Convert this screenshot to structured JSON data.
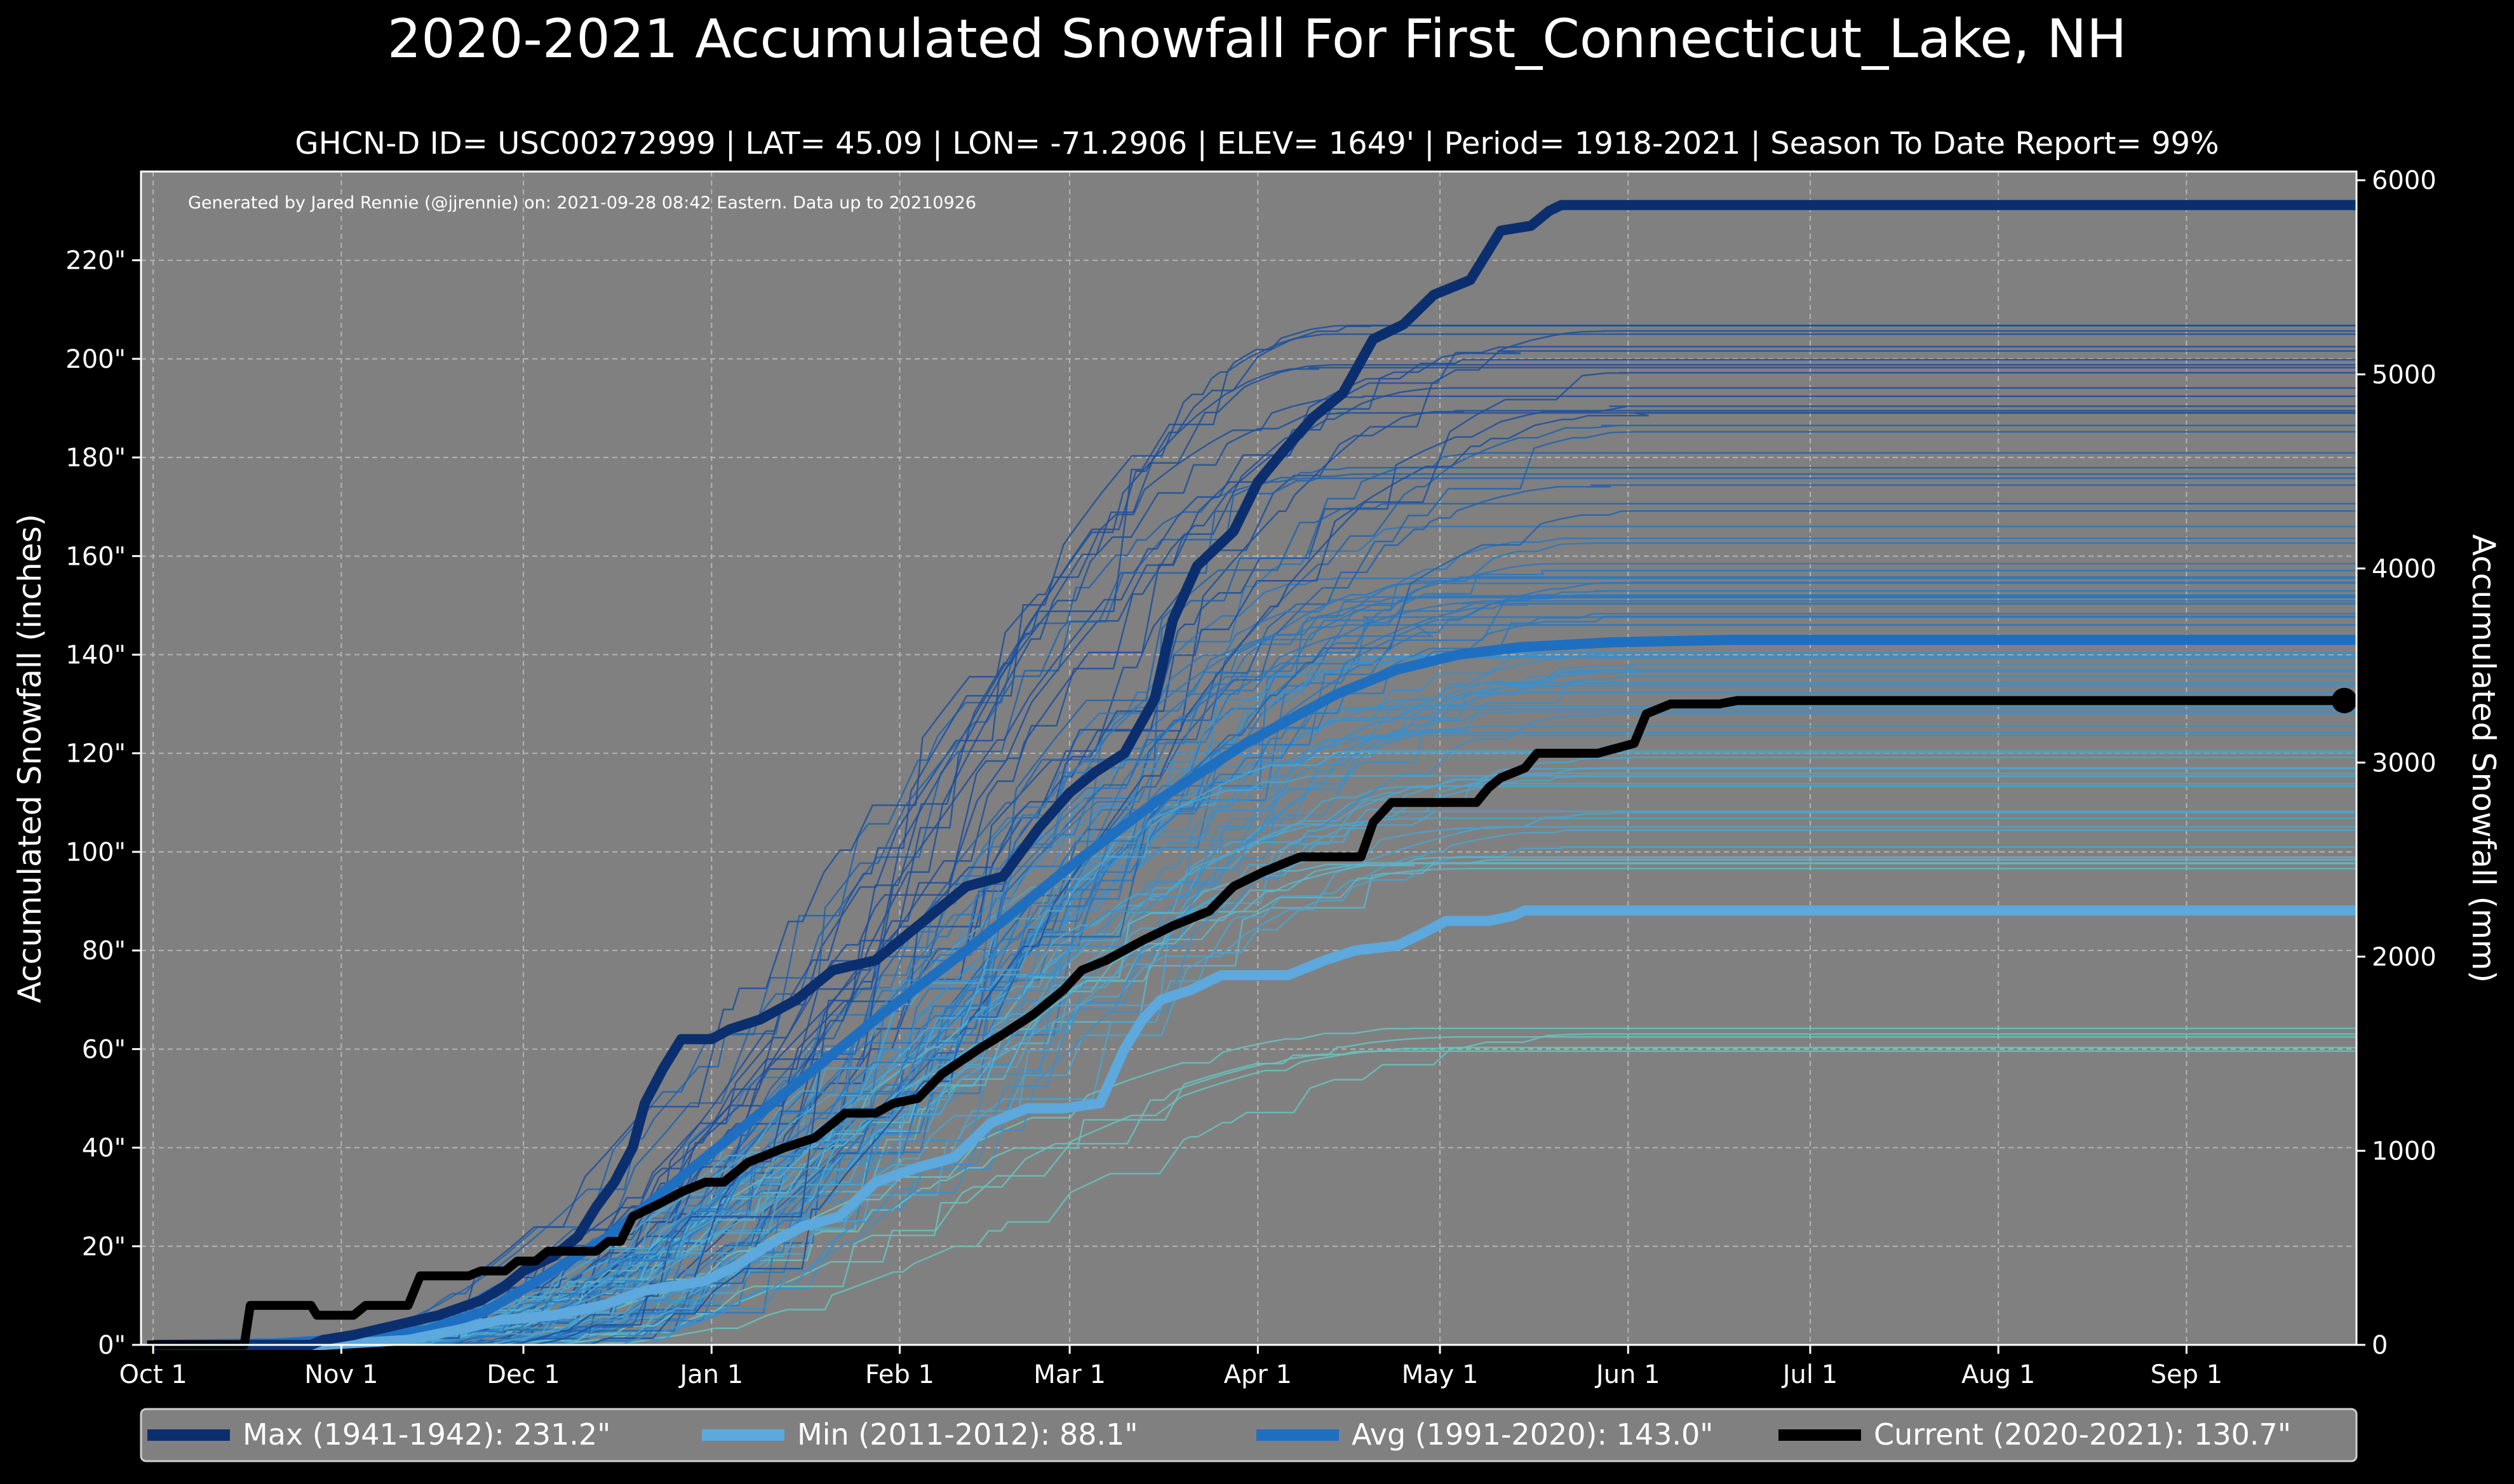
{
  "chart_data": {
    "type": "line",
    "title": "2020-2021 Accumulated Snowfall For First_Connecticut_Lake, NH",
    "subtitle": "GHCN-D ID= USC00272999 | LAT= 45.09 | LON= -71.2906 | ELEV= 1649' | Period= 1918-2021 | Season To Date Report= 99%",
    "credit": "Generated by Jared Rennie (@jjrennie) on: 2021-09-28 08:42 Eastern. Data up to 20210926",
    "ylabel_left": "Accumulated Snowfall (inches)",
    "ylabel_right": "Accumulated Snowfall (mm)",
    "x_ticks": [
      "Oct 1",
      "Nov 1",
      "Dec 1",
      "Jan 1",
      "Feb 1",
      "Mar 1",
      "Apr 1",
      "May 1",
      "Jun 1",
      "Jul 1",
      "Aug 1",
      "Sep 1"
    ],
    "y_ticks_left": [
      "0\"",
      "20\"",
      "40\"",
      "60\"",
      "80\"",
      "100\"",
      "120\"",
      "140\"",
      "160\"",
      "180\"",
      "200\"",
      "220\""
    ],
    "y_ticks_right": [
      "0",
      "1000",
      "2000",
      "3000",
      "4000",
      "5000",
      "6000"
    ],
    "ylim_inches": [
      0,
      238
    ],
    "ylim_mm": [
      0,
      6045
    ],
    "xlim_days_from_oct1": [
      -2,
      363
    ],
    "grid": true,
    "legend_position": "bottom",
    "series": [
      {
        "name": "Max (1941-1942):  231.2\"",
        "color": "#0b2f6e",
        "points": [
          [
            0,
            0
          ],
          [
            26,
            0
          ],
          [
            28,
            1
          ],
          [
            33,
            2
          ],
          [
            40,
            4
          ],
          [
            47,
            6
          ],
          [
            54,
            9
          ],
          [
            58,
            12
          ],
          [
            61,
            15
          ],
          [
            66,
            18
          ],
          [
            70,
            22
          ],
          [
            73,
            28
          ],
          [
            76,
            33
          ],
          [
            79,
            40
          ],
          [
            81,
            49
          ],
          [
            84,
            56
          ],
          [
            87,
            62
          ],
          [
            92,
            62
          ],
          [
            95,
            64
          ],
          [
            100,
            66
          ],
          [
            106,
            70
          ],
          [
            112,
            76
          ],
          [
            119,
            78
          ],
          [
            124,
            83
          ],
          [
            129,
            88
          ],
          [
            134,
            93
          ],
          [
            140,
            95
          ],
          [
            146,
            105
          ],
          [
            151,
            112
          ],
          [
            155,
            116
          ],
          [
            160,
            120
          ],
          [
            165,
            131
          ],
          [
            168,
            147
          ],
          [
            172,
            158
          ],
          [
            178,
            165
          ],
          [
            182,
            175
          ],
          [
            186,
            181
          ],
          [
            191,
            188
          ],
          [
            196,
            193
          ],
          [
            201,
            204
          ],
          [
            206,
            207
          ],
          [
            211,
            213
          ],
          [
            217,
            216
          ],
          [
            222,
            226
          ],
          [
            227,
            227
          ],
          [
            230,
            230
          ],
          [
            232,
            231.2
          ],
          [
            363,
            231.2
          ]
        ]
      },
      {
        "name": "Min (2011-2012):   88.1\"",
        "color": "#5da8dc",
        "points": [
          [
            0,
            0
          ],
          [
            28,
            0
          ],
          [
            42,
            1
          ],
          [
            50,
            3
          ],
          [
            57,
            5
          ],
          [
            66,
            6
          ],
          [
            74,
            8
          ],
          [
            81,
            11
          ],
          [
            91,
            13
          ],
          [
            96,
            16
          ],
          [
            101,
            20
          ],
          [
            107,
            24
          ],
          [
            113,
            26
          ],
          [
            119,
            33
          ],
          [
            126,
            36
          ],
          [
            132,
            38
          ],
          [
            138,
            45
          ],
          [
            144,
            48
          ],
          [
            150,
            48
          ],
          [
            156,
            49
          ],
          [
            160,
            60
          ],
          [
            163,
            66
          ],
          [
            166,
            70
          ],
          [
            171,
            72
          ],
          [
            176,
            75
          ],
          [
            187,
            75
          ],
          [
            193,
            78
          ],
          [
            198,
            80
          ],
          [
            205,
            81
          ],
          [
            210,
            84
          ],
          [
            213,
            86
          ],
          [
            220,
            86
          ],
          [
            224,
            87
          ],
          [
            226,
            88.1
          ],
          [
            363,
            88.1
          ]
        ]
      },
      {
        "name": "Avg (1991-2020):  143.0\"",
        "color": "#1f6fc1",
        "points": [
          [
            0,
            0
          ],
          [
            20,
            0.3
          ],
          [
            30,
            1
          ],
          [
            45,
            3
          ],
          [
            55,
            7
          ],
          [
            62,
            12
          ],
          [
            75,
            22
          ],
          [
            90,
            37
          ],
          [
            105,
            52
          ],
          [
            120,
            67
          ],
          [
            135,
            81
          ],
          [
            150,
            96
          ],
          [
            165,
            110
          ],
          [
            180,
            122
          ],
          [
            195,
            132
          ],
          [
            205,
            137
          ],
          [
            215,
            140
          ],
          [
            225,
            141.5
          ],
          [
            240,
            142.5
          ],
          [
            260,
            143
          ],
          [
            363,
            143
          ]
        ]
      },
      {
        "name": "Current (2020-2021):  130.7\"",
        "color": "#000000",
        "points": [
          [
            -1,
            0
          ],
          [
            15,
            0
          ],
          [
            16,
            8
          ],
          [
            26,
            8
          ],
          [
            27,
            6
          ],
          [
            33,
            6
          ],
          [
            35,
            8
          ],
          [
            42,
            8
          ],
          [
            44,
            14
          ],
          [
            52,
            14
          ],
          [
            54,
            15
          ],
          [
            58,
            15
          ],
          [
            60,
            17
          ],
          [
            63,
            17
          ],
          [
            65,
            19
          ],
          [
            73,
            19
          ],
          [
            75,
            21
          ],
          [
            77,
            21
          ],
          [
            79,
            26
          ],
          [
            84,
            29
          ],
          [
            87,
            31
          ],
          [
            91,
            33
          ],
          [
            94,
            33
          ],
          [
            98,
            37
          ],
          [
            104,
            40
          ],
          [
            109,
            42
          ],
          [
            114,
            47
          ],
          [
            119,
            47
          ],
          [
            122,
            49
          ],
          [
            126,
            50
          ],
          [
            130,
            55
          ],
          [
            136,
            60
          ],
          [
            140,
            63
          ],
          [
            145,
            67
          ],
          [
            150,
            72
          ],
          [
            153,
            76
          ],
          [
            157,
            78
          ],
          [
            163,
            82
          ],
          [
            168,
            85
          ],
          [
            174,
            88
          ],
          [
            178,
            93
          ],
          [
            183,
            96
          ],
          [
            189,
            99
          ],
          [
            199,
            99
          ],
          [
            201,
            106
          ],
          [
            204,
            110
          ],
          [
            209,
            110
          ],
          [
            218,
            110
          ],
          [
            220,
            113
          ],
          [
            222,
            115
          ],
          [
            226,
            117
          ],
          [
            228,
            120
          ],
          [
            238,
            120
          ],
          [
            244,
            122
          ],
          [
            246,
            128
          ],
          [
            250,
            130
          ],
          [
            258,
            130
          ],
          [
            261,
            130.7
          ],
          [
            363,
            130.7
          ]
        ],
        "end_marker": true
      }
    ],
    "background_ensemble": "about 100 additional historical seasons drawn as thin blue-to-teal lines (1918-2021); individual values not labeled"
  },
  "legend": [
    {
      "label": "Max (1941-1942):  231.2\"",
      "color": "#0b2f6e"
    },
    {
      "label": "Min (2011-2012):   88.1\"",
      "color": "#5da8dc"
    },
    {
      "label": "Avg (1991-2020):  143.0\"",
      "color": "#1f6fc1"
    },
    {
      "label": "Current (2020-2021):  130.7\"",
      "color": "#000000"
    }
  ],
  "colors": {
    "background": "#000000",
    "plot_background": "#808080",
    "text": "#ffffff",
    "grid": "#b4b4b4"
  }
}
